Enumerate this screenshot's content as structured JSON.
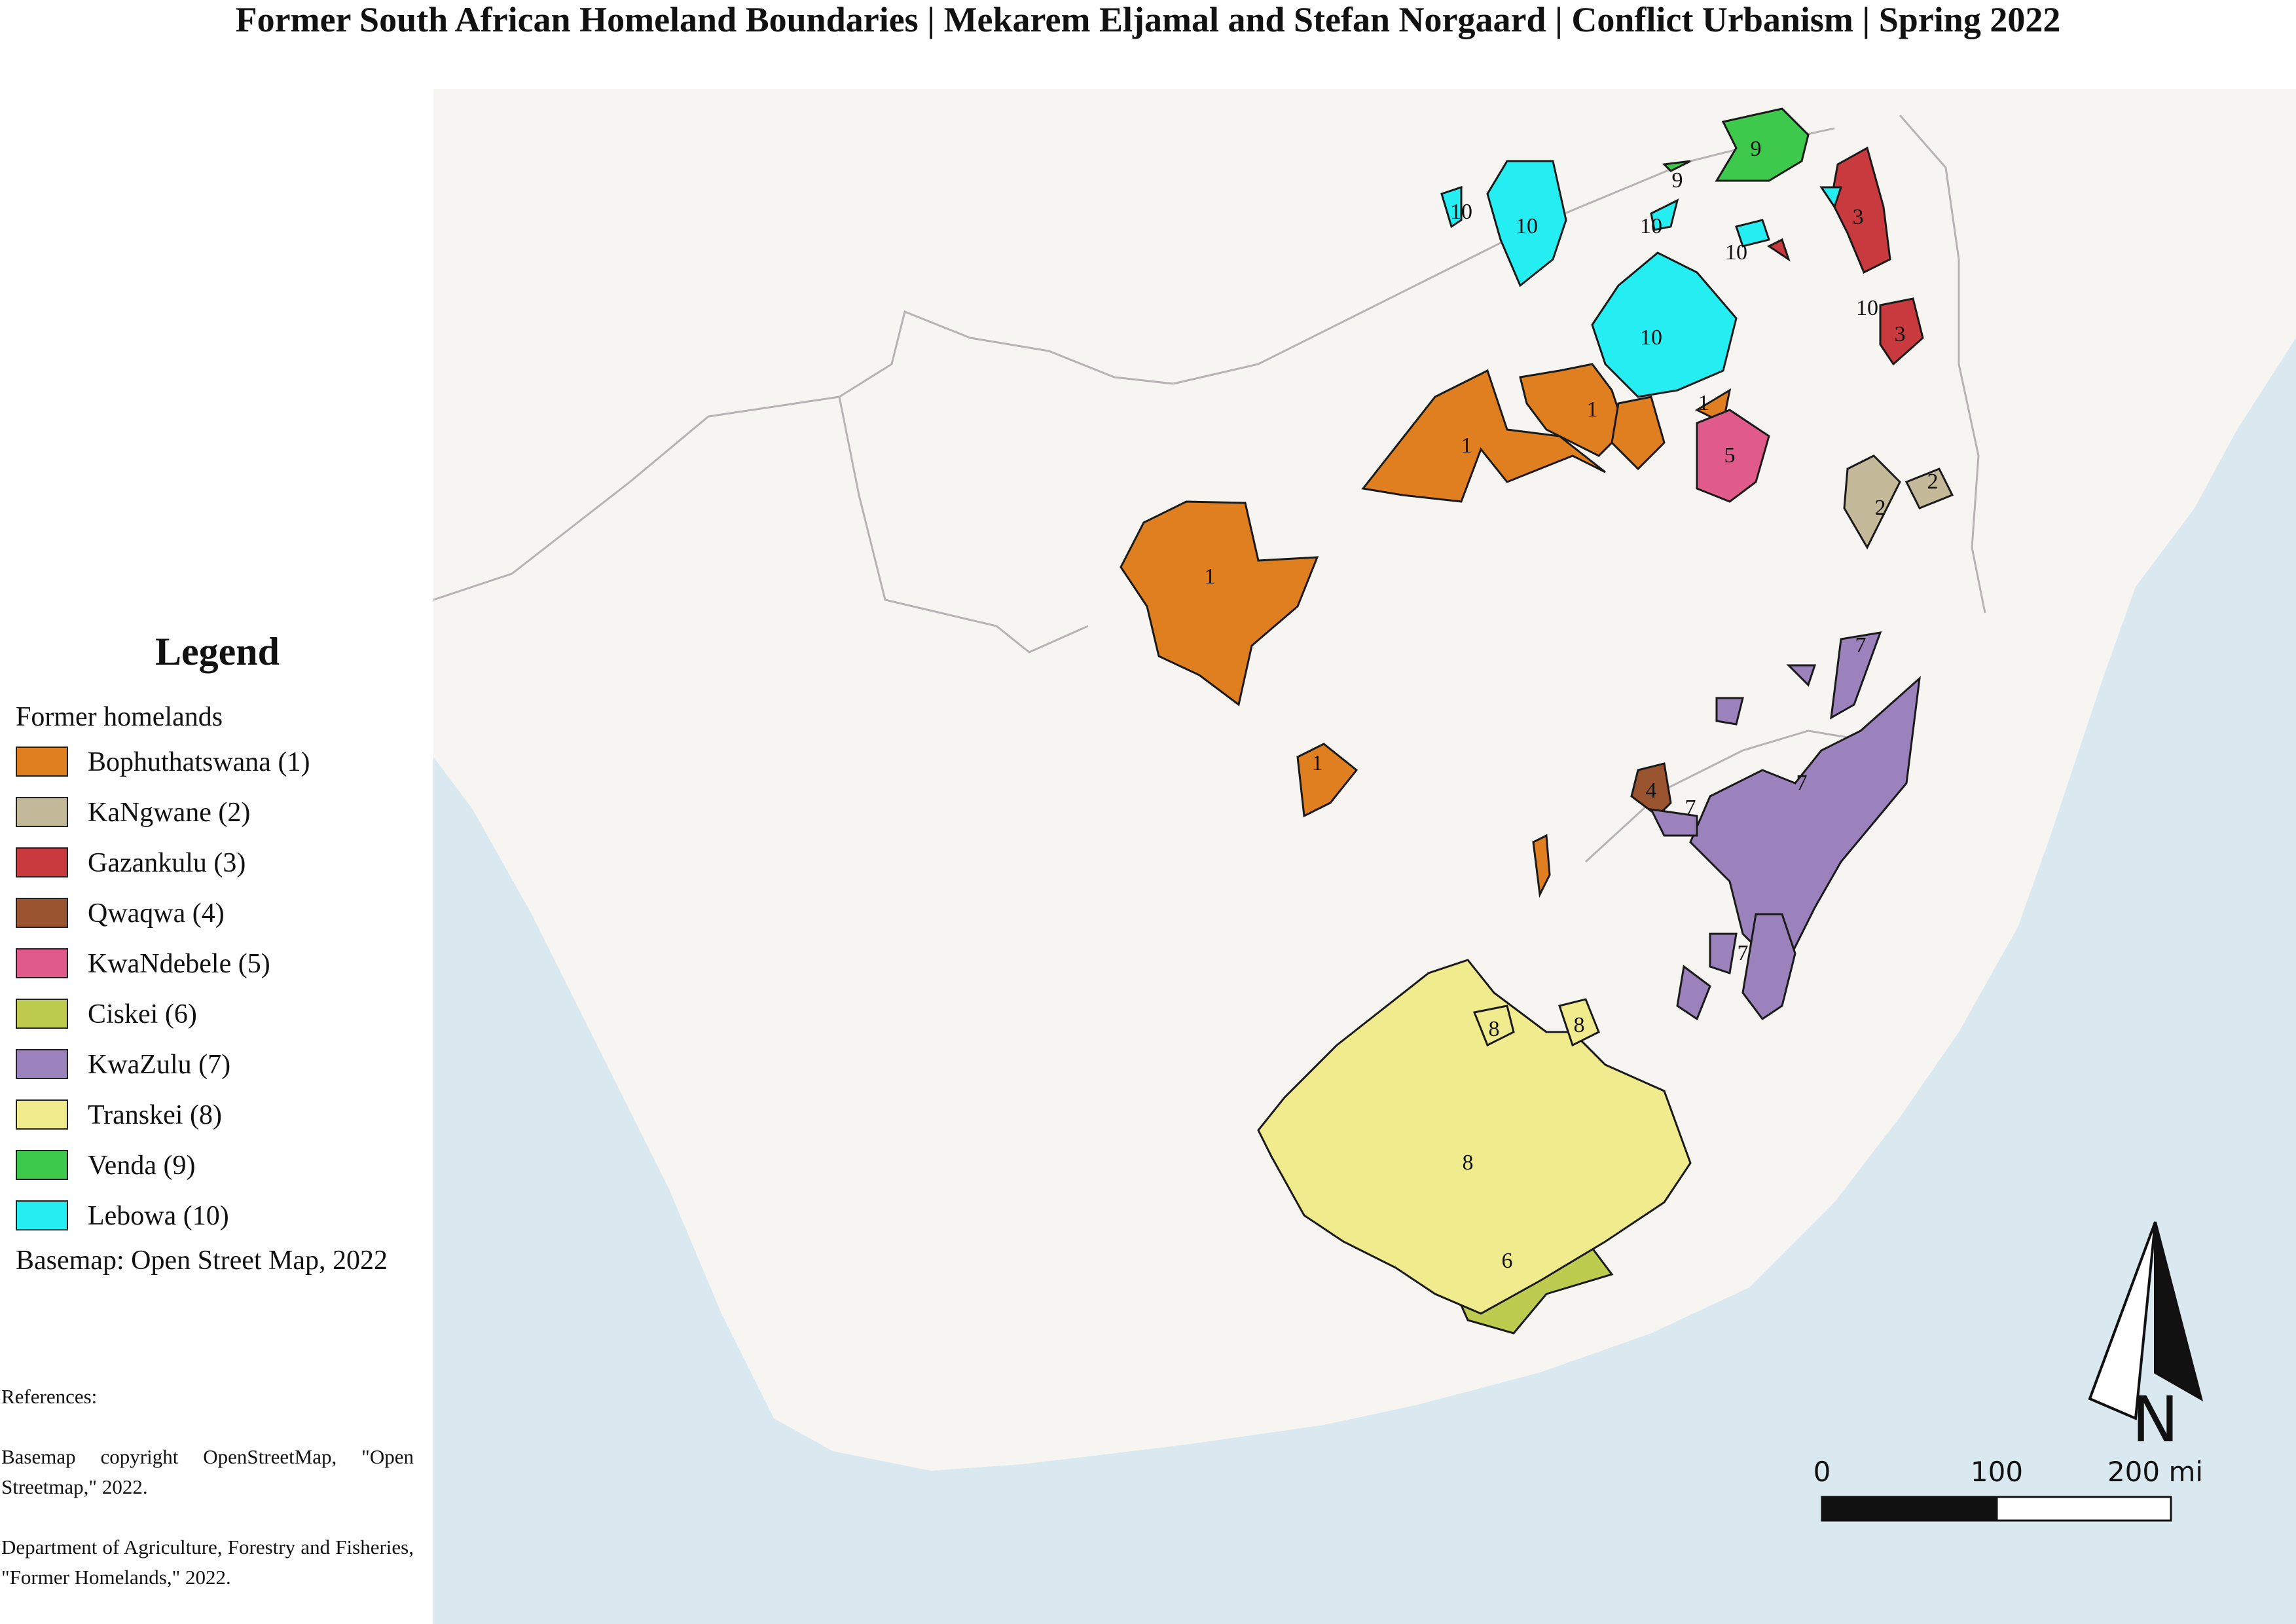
{
  "title": "Former South African Homeland Boundaries  |  Mekarem Eljamal and Stefan Norgaard  |  Conflict Urbanism  |  Spring 2022",
  "legend": {
    "heading": "Legend",
    "group": "Former homelands",
    "items": [
      {
        "label": "Bophuthatswana (1)",
        "color": "#e07f20"
      },
      {
        "label": "KaNgwane (2)",
        "color": "#c4b999"
      },
      {
        "label": "Gazankulu (3)",
        "color": "#c83a3e"
      },
      {
        "label": "Qwaqwa (4)",
        "color": "#9a5530"
      },
      {
        "label": "KwaNdebele (5)",
        "color": "#e05b8a"
      },
      {
        "label": "Ciskei (6)",
        "color": "#bdcc4f"
      },
      {
        "label": "KwaZulu (7)",
        "color": "#9b82bc"
      },
      {
        "label": "Transkei (8)",
        "color": "#f0eb8c"
      },
      {
        "label": "Venda (9)",
        "color": "#3dc94b"
      },
      {
        "label": "Lebowa (10)",
        "color": "#25eef2"
      }
    ],
    "basemap": "Basemap: Open Street Map,  2022"
  },
  "references": {
    "heading": "References:",
    "entries": [
      "Basemap copyright OpenStreetMap, \"Open Streetmap,\" 2022.",
      "Department of Agriculture, Forestry and Fisheries, \"Former Homelands,\" 2022."
    ]
  },
  "map": {
    "land_color": "#f7f5f2",
    "ocean_color": "#d9e9ef",
    "border_color": "#b8b2b5",
    "north_label": "N",
    "scale": {
      "labels": [
        "0",
        "100",
        "200 mi"
      ]
    },
    "homeland_labels": {
      "bophuthatswana": "1",
      "kangwane": "2",
      "gazankulu": "3",
      "qwaqwa": "4",
      "kwandebele": "5",
      "ciskei": "6",
      "kwazulu": "7",
      "transkei": "8",
      "venda": "9",
      "lebowa": "10"
    }
  }
}
